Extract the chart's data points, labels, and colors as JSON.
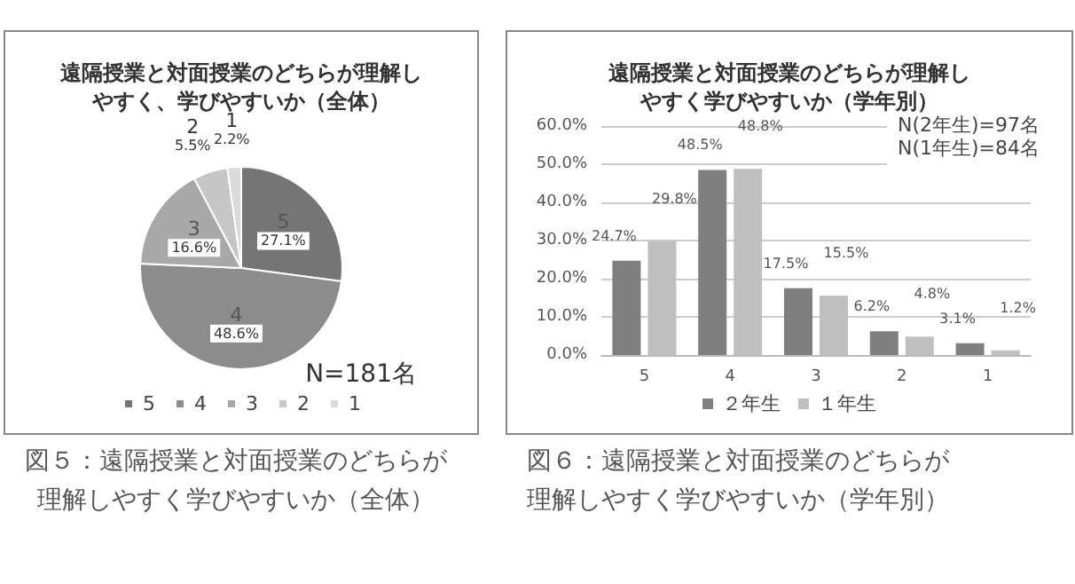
{
  "chart_data": [
    {
      "type": "pie",
      "title": "遠隔授業と対面授業のどちらが理解しやすく、学びやすいか（全体）",
      "categories": [
        "5",
        "4",
        "3",
        "2",
        "1"
      ],
      "values": [
        27.1,
        48.6,
        16.6,
        5.5,
        2.2
      ],
      "value_labels": [
        "27.1%",
        "48.6%",
        "16.6%",
        "5.5%",
        "2.2%"
      ],
      "colors": [
        "#757575",
        "#8c8c8c",
        "#a8a8a8",
        "#c6c6c6",
        "#dadada"
      ],
      "legend": "bottom",
      "annotations": [
        "N=181名",
        "図５：遠隔授業と対面授業のどちらが理解しやすく学びやすいか（全体）"
      ]
    },
    {
      "type": "bar",
      "title": "遠隔授業と対面授業のどちらが理解しやすく学びやすいか（学年別）",
      "categories": [
        "5",
        "4",
        "3",
        "2",
        "1"
      ],
      "series": [
        {
          "name": "２年生",
          "color": "#7f7f7f",
          "values": [
            24.7,
            48.5,
            17.5,
            6.2,
            3.1
          ],
          "value_labels": [
            "24.7%",
            "48.5%",
            "17.5%",
            "6.2%",
            "3.1%"
          ]
        },
        {
          "name": "１年生",
          "color": "#bfbfbf",
          "values": [
            29.8,
            48.8,
            15.5,
            4.8,
            1.2
          ],
          "value_labels": [
            "29.8%",
            "48.8%",
            "15.5%",
            "4.8%",
            "1.2%"
          ]
        }
      ],
      "ylim": [
        0,
        60
      ],
      "yticks": [
        {
          "value": 0,
          "label": "0.0%"
        },
        {
          "value": 10,
          "label": "10.0%"
        },
        {
          "value": 20,
          "label": "20.0%"
        },
        {
          "value": 30,
          "label": "30.0%"
        },
        {
          "value": 40,
          "label": "40.0%"
        },
        {
          "value": 50,
          "label": "50.0%"
        },
        {
          "value": 60,
          "label": "60.0%"
        }
      ],
      "grid": "y",
      "legend": "bottom",
      "annotations": [
        "N(2年生)=97名",
        "N(1年生)=84名",
        "図６：遠隔授業と対面授業のどちらが理解しやすく学びやすいか（学年別）"
      ]
    }
  ]
}
